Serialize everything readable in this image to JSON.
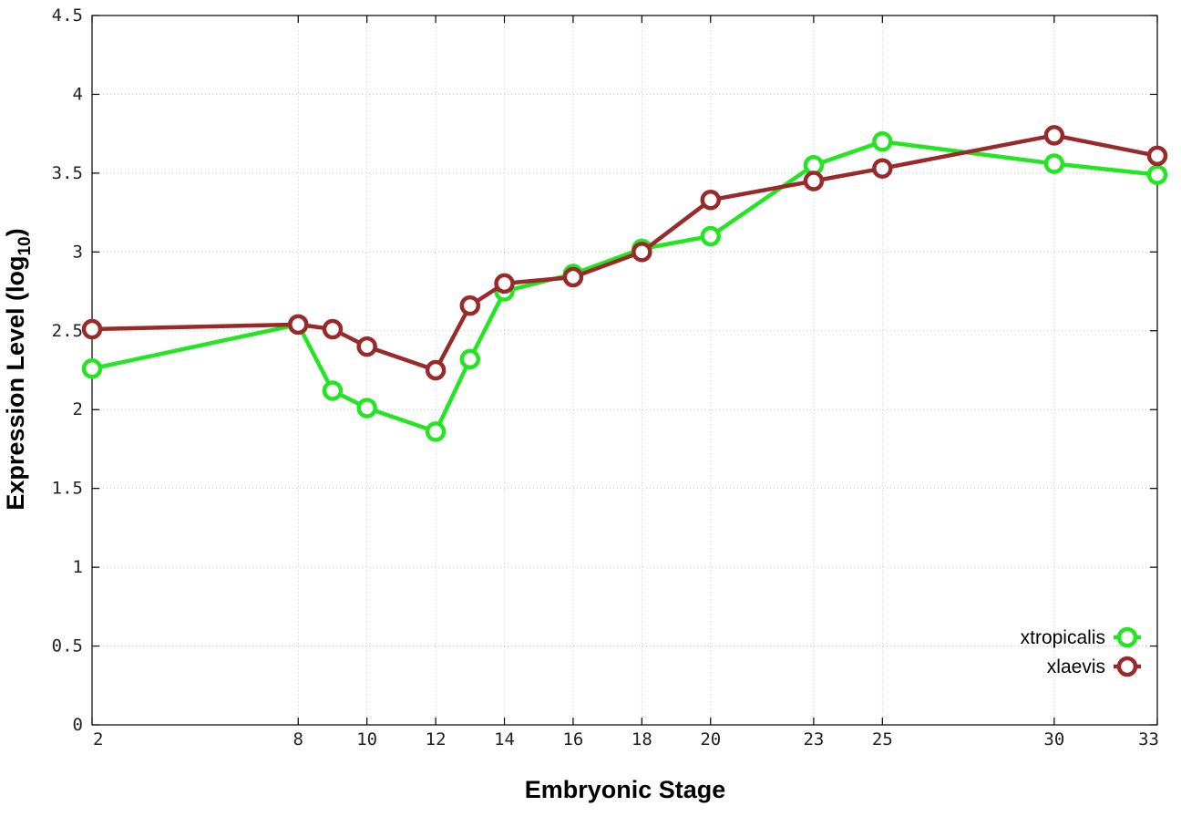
{
  "chart_data": {
    "type": "line",
    "xlabel": "Embryonic Stage",
    "ylabel_main": "Expression Level (log",
    "ylabel_sub": "10",
    "ylabel_close": ")",
    "xlim": [
      2,
      33
    ],
    "ylim": [
      0,
      4.5
    ],
    "x_ticks": [
      2,
      8,
      10,
      12,
      14,
      16,
      18,
      20,
      23,
      25,
      30,
      33
    ],
    "x_tick_labels": [
      "2",
      "8",
      "10",
      "12",
      "14",
      "16",
      "18",
      "20",
      "23",
      "25",
      "30",
      "33"
    ],
    "y_ticks": [
      0,
      0.5,
      1,
      1.5,
      2,
      2.5,
      3,
      3.5,
      4,
      4.5
    ],
    "y_tick_labels": [
      "0",
      "0.5",
      "1",
      "1.5",
      "2",
      "2.5",
      "3",
      "3.5",
      "4",
      "4.5"
    ],
    "grid": true,
    "legend_position": "bottom-right",
    "x": [
      2,
      8,
      9,
      10,
      12,
      13,
      14,
      16,
      18,
      20,
      23,
      25,
      30,
      33
    ],
    "series": [
      {
        "name": "xtropicalis",
        "color": "#22e622",
        "values": [
          2.26,
          2.54,
          2.12,
          2.01,
          1.86,
          2.32,
          2.75,
          2.86,
          3.02,
          3.1,
          3.55,
          3.7,
          3.56,
          3.49
        ]
      },
      {
        "name": "xlaevis",
        "color": "#992a2a",
        "values": [
          2.51,
          2.54,
          2.51,
          2.4,
          2.25,
          2.66,
          2.8,
          2.84,
          3.0,
          3.33,
          3.45,
          3.53,
          3.74,
          3.61
        ]
      }
    ]
  }
}
